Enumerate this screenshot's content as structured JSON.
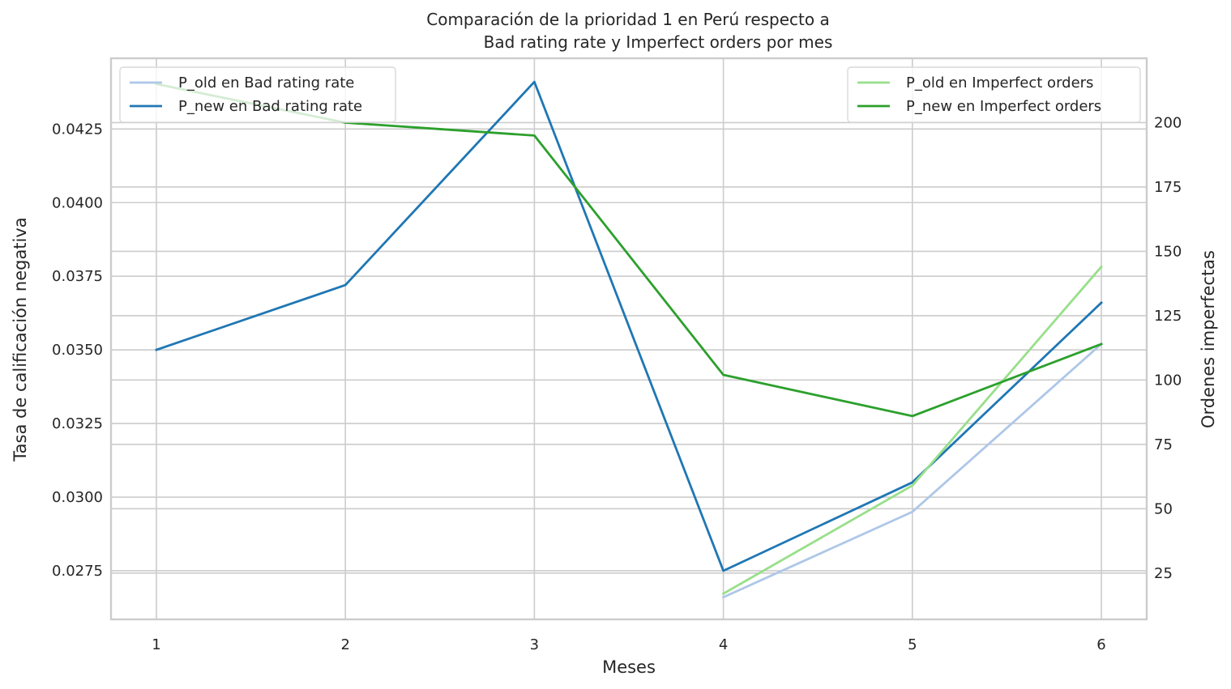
{
  "chart_data": {
    "type": "line",
    "title_line1": "Comparación de la prioridad 1 en Perú respecto a",
    "title_line2": "Bad rating rate y Imperfect orders por mes",
    "xlabel": "Meses",
    "ylabel_left": "Tasa de calificación negativa",
    "ylabel_right": "Ordenes imperfectas",
    "x": [
      1,
      2,
      3,
      4,
      5,
      6
    ],
    "x_ticks": [
      "1",
      "2",
      "3",
      "4",
      "5",
      "6"
    ],
    "ylim_left": [
      0.02585,
      0.0449
    ],
    "ylim_right": [
      7,
      225
    ],
    "y_ticks_left": [
      "0.0275",
      "0.0300",
      "0.0325",
      "0.0350",
      "0.0375",
      "0.0400",
      "0.0425"
    ],
    "y_ticks_right": [
      "25",
      "50",
      "75",
      "100",
      "125",
      "150",
      "175",
      "200"
    ],
    "grid": true,
    "series_left": [
      {
        "name": "P_old en Bad rating rate",
        "color": "#aec7e8",
        "x": [
          4,
          5,
          6
        ],
        "values": [
          0.0266,
          0.0295,
          0.0352
        ]
      },
      {
        "name": "P_new en Bad rating rate",
        "color": "#1f77b4",
        "x": [
          1,
          2,
          3,
          4,
          5,
          6
        ],
        "values": [
          0.035,
          0.0372,
          0.0441,
          0.0275,
          0.0305,
          0.0366
        ]
      }
    ],
    "series_right": [
      {
        "name": "P_old en Imperfect orders",
        "color": "#98df8a",
        "x": [
          4,
          5,
          6
        ],
        "values": [
          17,
          59,
          144
        ]
      },
      {
        "name": "P_new en Imperfect orders",
        "color": "#2ca02c",
        "x": [
          1,
          2,
          3,
          4,
          5,
          6
        ],
        "values": [
          215,
          200,
          195,
          102,
          86,
          114
        ]
      }
    ],
    "legend_left_placement": "upper-left",
    "legend_right_placement": "upper-right"
  }
}
